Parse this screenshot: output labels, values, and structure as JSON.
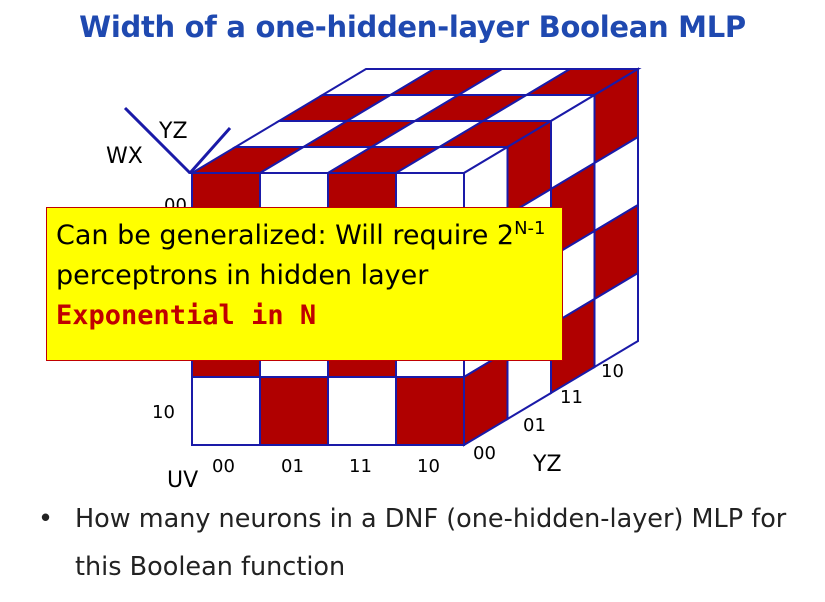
{
  "slide": {
    "title": "Width of a one-hidden-layer Boolean MLP"
  },
  "cube": {
    "axis_top_inner": "YZ",
    "axis_top_outer": "WX",
    "left_row_labels": [
      "00",
      "10"
    ],
    "bottom_col_labels": [
      "00",
      "01",
      "11",
      "10"
    ],
    "bottom_axis_label": "UV",
    "depth_labels": [
      "00",
      "01",
      "11",
      "10"
    ],
    "depth_axis_label": "YZ",
    "colors": {
      "filled": "#b00000",
      "empty": "#ffffff",
      "edge": "#1a1aa8"
    }
  },
  "callout": {
    "line1_text": "Can be generalized: Will require 2",
    "line1_sup": "N-1",
    "line2": "perceptrons in hidden layer",
    "line3_emphasis": "Exponential in N"
  },
  "bullets": [
    {
      "text": "How many neurons in a DNF (one-hidden-layer) MLP for this Boolean function"
    }
  ]
}
